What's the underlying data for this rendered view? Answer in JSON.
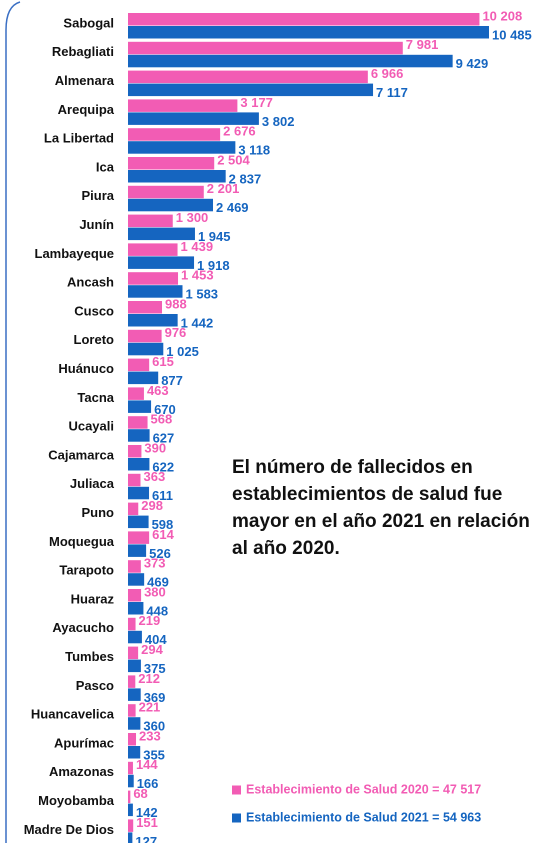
{
  "chart_data": {
    "type": "bar",
    "orientation": "horizontal",
    "categories": [
      "Sabogal",
      "Rebagliati",
      "Almenara",
      "Arequipa",
      "La Libertad",
      "Ica",
      "Piura",
      "Junín",
      "Lambayeque",
      "Ancash",
      "Cusco",
      "Loreto",
      "Huánuco",
      "Tacna",
      "Ucayali",
      "Cajamarca",
      "Juliaca",
      "Puno",
      "Moquegua",
      "Tarapoto",
      "Huaraz",
      "Ayacucho",
      "Tumbes",
      "Pasco",
      "Huancavelica",
      "Apurímac",
      "Amazonas",
      "Moyobamba",
      "Madre De Dios"
    ],
    "series": [
      {
        "name": "Establecimiento de Salud 2020 = 47 517",
        "color": "#f25cb4",
        "values": [
          10208,
          7981,
          6966,
          3177,
          2676,
          2504,
          2201,
          1300,
          1439,
          1453,
          988,
          976,
          615,
          463,
          568,
          390,
          363,
          298,
          614,
          373,
          380,
          219,
          294,
          212,
          221,
          233,
          144,
          68,
          151
        ],
        "value_labels": [
          "10 208",
          "7 981",
          "6 966",
          "3 177",
          "2 676",
          "2 504",
          "2 201",
          "1 300",
          "1 439",
          "1 453",
          "988",
          "976",
          "615",
          "463",
          "568",
          "390",
          "363",
          "298",
          "614",
          "373",
          "380",
          "219",
          "294",
          "212",
          "221",
          "233",
          "144",
          "68",
          "151"
        ]
      },
      {
        "name": "Establecimiento de Salud 2021 = 54 963",
        "color": "#1565c0",
        "values": [
          10485,
          9429,
          7117,
          3802,
          3118,
          2837,
          2469,
          1945,
          1918,
          1583,
          1442,
          1025,
          877,
          670,
          627,
          622,
          611,
          598,
          526,
          469,
          448,
          404,
          375,
          369,
          360,
          355,
          166,
          142,
          127
        ],
        "value_labels": [
          "10 485",
          "9 429",
          "7 117",
          "3 802",
          "3 118",
          "2 837",
          "2 469",
          "1 945",
          "1 918",
          "1 583",
          "1 442",
          "1 025",
          "877",
          "670",
          "627",
          "622",
          "611",
          "598",
          "526",
          "469",
          "448",
          "404",
          "375",
          "369",
          "360",
          "355",
          "166",
          "142",
          "127"
        ]
      }
    ],
    "annotation": "El número de fallecidos en establecimientos de salud fue mayor en el año 2021 en relación al año 2020.",
    "legend": "bottom-right"
  }
}
